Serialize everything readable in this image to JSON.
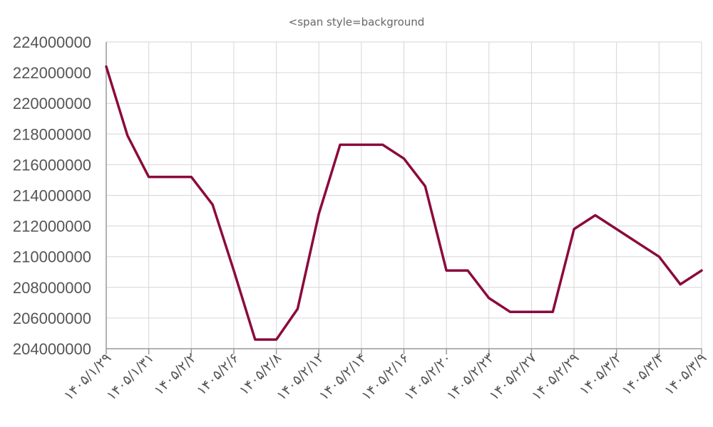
{
  "chart_data": {
    "type": "line",
    "title": "<span style=background",
    "xlabel": "",
    "ylabel": "",
    "ylim": [
      204000000,
      224000000
    ],
    "yticks": [
      224000000,
      222000000,
      220000000,
      218000000,
      216000000,
      214000000,
      212000000,
      210000000,
      208000000,
      206000000,
      204000000
    ],
    "ytick_labels": [
      "224000000",
      "222000000",
      "220000000",
      "218000000",
      "216000000",
      "214000000",
      "212000000",
      "210000000",
      "208000000",
      "206000000",
      "204000000"
    ],
    "x_tick_labels": [
      "۱۴۰۵/۱/۲۹",
      "۱۴۰۵/۱/۳۱",
      "۱۴۰۵/۲/۲",
      "۱۴۰۵/۲/۶",
      "۱۴۰۵/۲/۸",
      "۱۴۰۵/۲/۱۲",
      "۱۴۰۵/۲/۱۴",
      "۱۴۰۵/۲/۱۶",
      "۱۴۰۵/۲/۲۰",
      "۱۴۰۵/۲/۲۳",
      "۱۴۰۵/۲/۲۷",
      "۱۴۰۵/۲/۲۹",
      "۱۴۰۵/۳/۲",
      "۱۴۰۵/۳/۴",
      "۱۴۰۵/۳/۹"
    ],
    "grid": true,
    "series": [
      {
        "color": "#8b0a3c",
        "values": [
          222400000,
          217900000,
          215200000,
          215200000,
          215200000,
          213400000,
          209100000,
          204600000,
          204600000,
          206600000,
          212800000,
          217300000,
          217300000,
          217300000,
          216400000,
          214600000,
          209100000,
          209100000,
          207300000,
          206400000,
          206400000,
          206400000,
          211800000,
          212700000,
          211800000,
          210900000,
          210000000,
          208200000,
          209100000
        ]
      }
    ]
  }
}
